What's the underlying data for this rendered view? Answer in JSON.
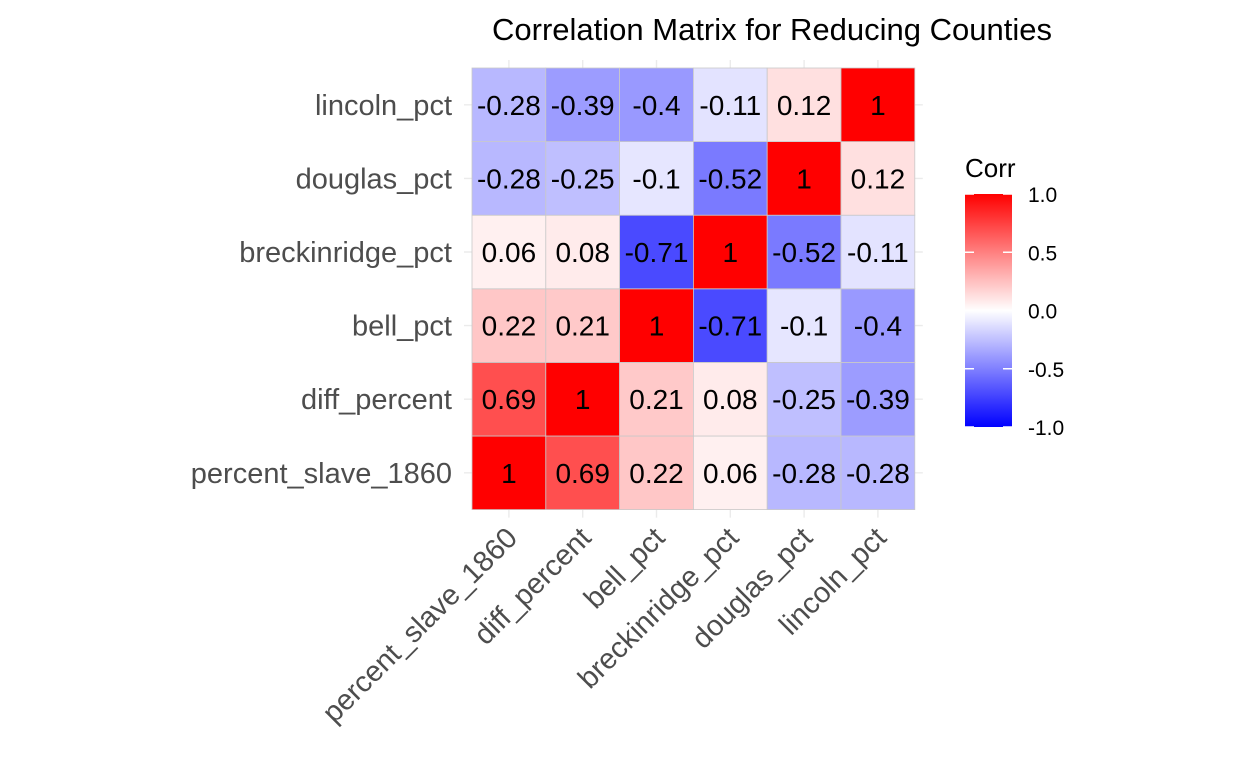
{
  "chart_data": {
    "type": "heatmap",
    "title": "Correlation Matrix for Reducing Counties",
    "variables": [
      "percent_slave_1860",
      "diff_percent",
      "bell_pct",
      "breckinridge_pct",
      "douglas_pct",
      "lincoln_pct"
    ],
    "matrix": [
      [
        1,
        0.69,
        0.22,
        0.06,
        -0.28,
        -0.28
      ],
      [
        0.69,
        1,
        0.21,
        0.08,
        -0.25,
        -0.39
      ],
      [
        0.22,
        0.21,
        1,
        -0.71,
        -0.1,
        -0.4
      ],
      [
        0.06,
        0.08,
        -0.71,
        1,
        -0.52,
        -0.11
      ],
      [
        -0.28,
        -0.25,
        -0.1,
        -0.52,
        1,
        0.12
      ],
      [
        -0.28,
        -0.39,
        -0.4,
        -0.11,
        0.12,
        1
      ]
    ],
    "x_order": "variables left to right",
    "y_order": "variables bottom to top",
    "color_scale": {
      "low": "#0000ff",
      "mid": "#ffffff",
      "high": "#ff0000",
      "limits": [
        -1,
        1
      ]
    },
    "legend": {
      "title": "Corr",
      "placement": "right",
      "ticks": [
        "1.0",
        "0.5",
        "0.0",
        "-0.5",
        "-1.0"
      ],
      "tick_values": [
        1,
        0.5,
        0,
        -0.5,
        -1
      ]
    },
    "grid": true,
    "xlabel": "",
    "ylabel": ""
  }
}
